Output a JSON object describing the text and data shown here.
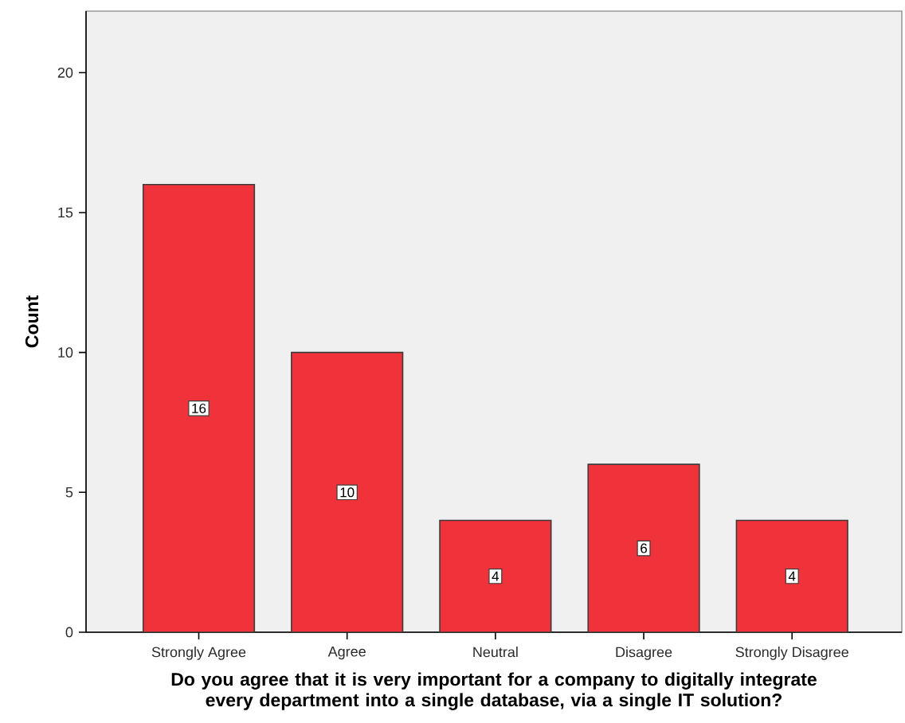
{
  "chart_data": {
    "type": "bar",
    "xlabel": "Do you agree that it is very important for a company to digitally integrate every department into a single database, via a single IT solution?",
    "ylabel": "Count",
    "categories": [
      "Strongly Agree",
      "Agree",
      "Neutral",
      "Disagree",
      "Strongly Disagree"
    ],
    "values": [
      16,
      10,
      4,
      6,
      4
    ],
    "color": "#f0323a",
    "data_labels": true,
    "ylim": [
      0,
      22.2
    ],
    "yticks": [
      0,
      5,
      10,
      15,
      20
    ]
  }
}
